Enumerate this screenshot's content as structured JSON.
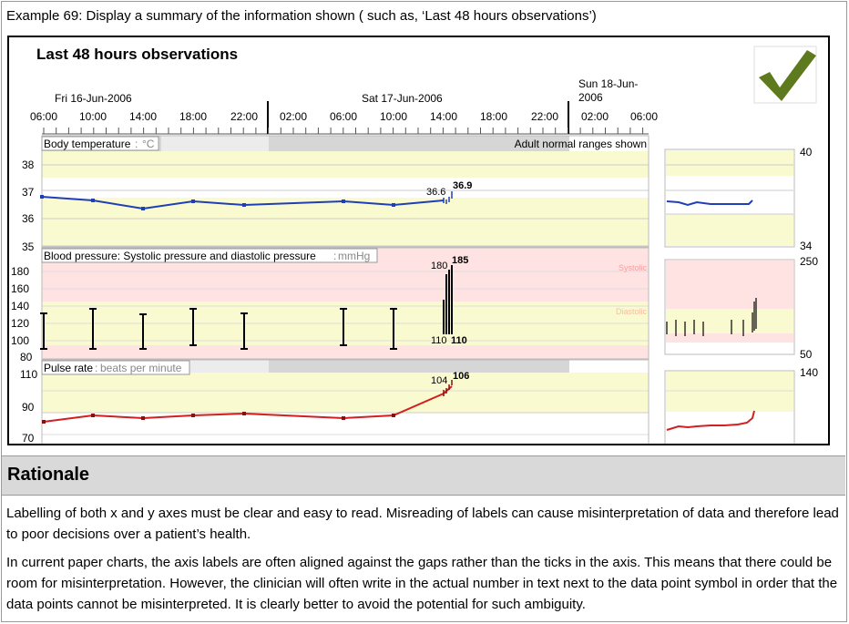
{
  "caption": "Example 69: Display a summary of the information shown ( such as, ‘Last 48 hours observations’)",
  "screen": {
    "title": "Last 48 hours observations",
    "check_icon_color": "#5e7a1e",
    "dates": {
      "d1": "Fri 16-Jun-2006",
      "d2": "Sat 17-Jun-2006",
      "d3_line1": "Sun 18-Jun-",
      "d3_line2": "2006"
    },
    "time_ticks": [
      "06:00",
      "10:00",
      "14:00",
      "18:00",
      "22:00",
      "02:00",
      "06:00",
      "10:00",
      "14:00",
      "18:00",
      "22:00",
      "02:00",
      "06:00"
    ],
    "temp": {
      "label": "Body temperature",
      "unit_sep": ":",
      "unit": "°C",
      "ranges_note": "Adult normal ranges shown",
      "y_ticks": [
        "38",
        "37",
        "36",
        "35"
      ],
      "prev_value": "36.6",
      "last_value": "36.9",
      "summary_max": "40",
      "summary_min": "34",
      "color": "#1f3fb7"
    },
    "bp": {
      "label": "Blood pressure: Systolic pressure and diastolic pressure",
      "unit_sep": ":",
      "unit": "mmHg",
      "y_ticks": [
        "180",
        "160",
        "140",
        "120",
        "100",
        "80"
      ],
      "prev_sys": "180",
      "last_sys": "185",
      "prev_dia": "110",
      "last_dia": "110",
      "systolic_tag": "Systolic",
      "diastolic_tag": "Diastolic",
      "summary_max": "250",
      "summary_min": "50"
    },
    "pulse": {
      "label": "Pulse rate",
      "unit_sep": ":",
      "unit": "beats per minute",
      "y_ticks": [
        "110",
        "90",
        "70"
      ],
      "prev_value": "104",
      "last_value": "106",
      "summary_max": "140",
      "color": "#d02020"
    }
  },
  "rationale": {
    "title": "Rationale",
    "p1": "Labelling of both x and y axes must be clear and easy to read. Misreading of labels can cause misinterpretation of data and therefore lead to poor decisions over a patient’s health.",
    "p2": "In current paper charts, the axis labels are often aligned against the gaps rather than the ticks in the axis. This means that there could be room for misinterpretation. However, the clinician will often write in the actual number in text next to the data point symbol in order that the data points cannot be misinterpreted. It is clearly better to avoid the potential for such ambiguity."
  }
}
